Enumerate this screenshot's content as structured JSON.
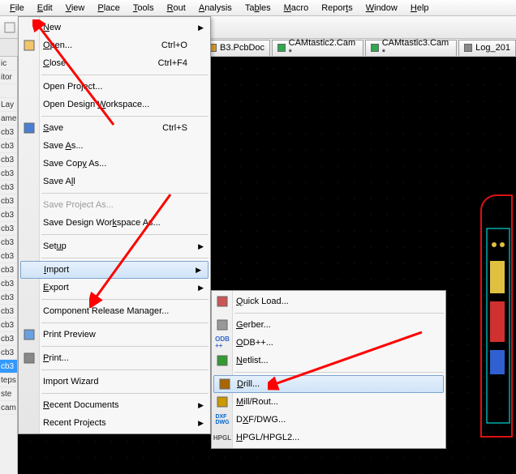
{
  "menubar": [
    "File",
    "Edit",
    "View",
    "Place",
    "Tools",
    "Rout",
    "Analysis",
    "Tables",
    "Macro",
    "Reports",
    "Window",
    "Help"
  ],
  "menubar_keys": [
    "F",
    "E",
    "V",
    "P",
    "T",
    "R",
    "A",
    "b",
    "M",
    "t",
    "W",
    "H"
  ],
  "tabs": [
    {
      "label": "B3.PcbDoc",
      "color": "#d99a22"
    },
    {
      "label": "CAMtastic2.Cam *",
      "color": "#2fa84f"
    },
    {
      "label": "CAMtastic3.Cam *",
      "color": "#2fa84f"
    },
    {
      "label": "Log_201",
      "color": "#888888"
    }
  ],
  "sidebar": {
    "items": [
      "ic",
      "itor",
      "",
      "Lay",
      "ame",
      "cb3",
      "cb3",
      "cb3",
      "cb3",
      "cb3",
      "cb3",
      "cb3",
      "cb3",
      "cb3",
      "cb3",
      "cb3",
      "cb3",
      "cb3",
      "cb3",
      "cb3",
      "cb3",
      "cb3",
      "cb3"
    ],
    "selected_index": 22,
    "tail": [
      "teps",
      "ste",
      "cam"
    ]
  },
  "file_menu": [
    {
      "t": "item",
      "label": "New",
      "u": "N",
      "shortcut": "",
      "arrow": true
    },
    {
      "t": "item",
      "label": "Open...",
      "u": "O",
      "shortcut": "Ctrl+O",
      "icon": "open"
    },
    {
      "t": "item",
      "label": "Close",
      "u": "C",
      "shortcut": "Ctrl+F4"
    },
    {
      "t": "sep"
    },
    {
      "t": "item",
      "label": "Open Project...",
      "u": ""
    },
    {
      "t": "item",
      "label": "Open Design Workspace...",
      "u": "W"
    },
    {
      "t": "sep"
    },
    {
      "t": "item",
      "label": "Save",
      "u": "S",
      "shortcut": "Ctrl+S",
      "icon": "save"
    },
    {
      "t": "item",
      "label": "Save As...",
      "u": "A"
    },
    {
      "t": "item",
      "label": "Save Copy As...",
      "u": "y"
    },
    {
      "t": "item",
      "label": "Save All",
      "u": "l"
    },
    {
      "t": "sep"
    },
    {
      "t": "item",
      "label": "Save Project As...",
      "disabled": true
    },
    {
      "t": "item",
      "label": "Save Design Workspace As...",
      "u": "k"
    },
    {
      "t": "sep"
    },
    {
      "t": "item",
      "label": "Setup",
      "u": "u",
      "arrow": true
    },
    {
      "t": "sep"
    },
    {
      "t": "item",
      "label": "Import",
      "u": "I",
      "arrow": true,
      "hl": true
    },
    {
      "t": "item",
      "label": "Export",
      "u": "E",
      "arrow": true
    },
    {
      "t": "sep"
    },
    {
      "t": "item",
      "label": "Component Release Manager...",
      "u": ""
    },
    {
      "t": "sep"
    },
    {
      "t": "item",
      "label": "Print Preview",
      "u": "V",
      "icon": "preview"
    },
    {
      "t": "sep"
    },
    {
      "t": "item",
      "label": "Print...",
      "u": "P",
      "icon": "print"
    },
    {
      "t": "sep"
    },
    {
      "t": "item",
      "label": "Import Wizard",
      "u": ""
    },
    {
      "t": "sep"
    },
    {
      "t": "item",
      "label": "Recent Documents",
      "u": "R",
      "arrow": true
    },
    {
      "t": "item",
      "label": "Recent Projects",
      "u": "j",
      "arrow": true
    }
  ],
  "import_menu": [
    {
      "t": "item",
      "label": "Quick Load...",
      "u": "Q",
      "icon": "ql"
    },
    {
      "t": "sep"
    },
    {
      "t": "item",
      "label": "Gerber...",
      "u": "G",
      "icon": "gb"
    },
    {
      "t": "item",
      "label": "ODB++...",
      "u": "O",
      "icon": "odb"
    },
    {
      "t": "item",
      "label": "Netlist...",
      "u": "N",
      "icon": "nl"
    },
    {
      "t": "sep"
    },
    {
      "t": "item",
      "label": "Drill...",
      "u": "D",
      "hl": true,
      "icon": "dr"
    },
    {
      "t": "item",
      "label": "Mill/Rout...",
      "u": "M",
      "icon": "mr"
    },
    {
      "t": "item",
      "label": "DXF/DWG...",
      "u": "X",
      "icon": "dxf"
    },
    {
      "t": "item",
      "label": "HPGL/HPGL2...",
      "u": "H",
      "icon": "hp"
    }
  ],
  "arrows": {
    "color": "#ff0000"
  }
}
